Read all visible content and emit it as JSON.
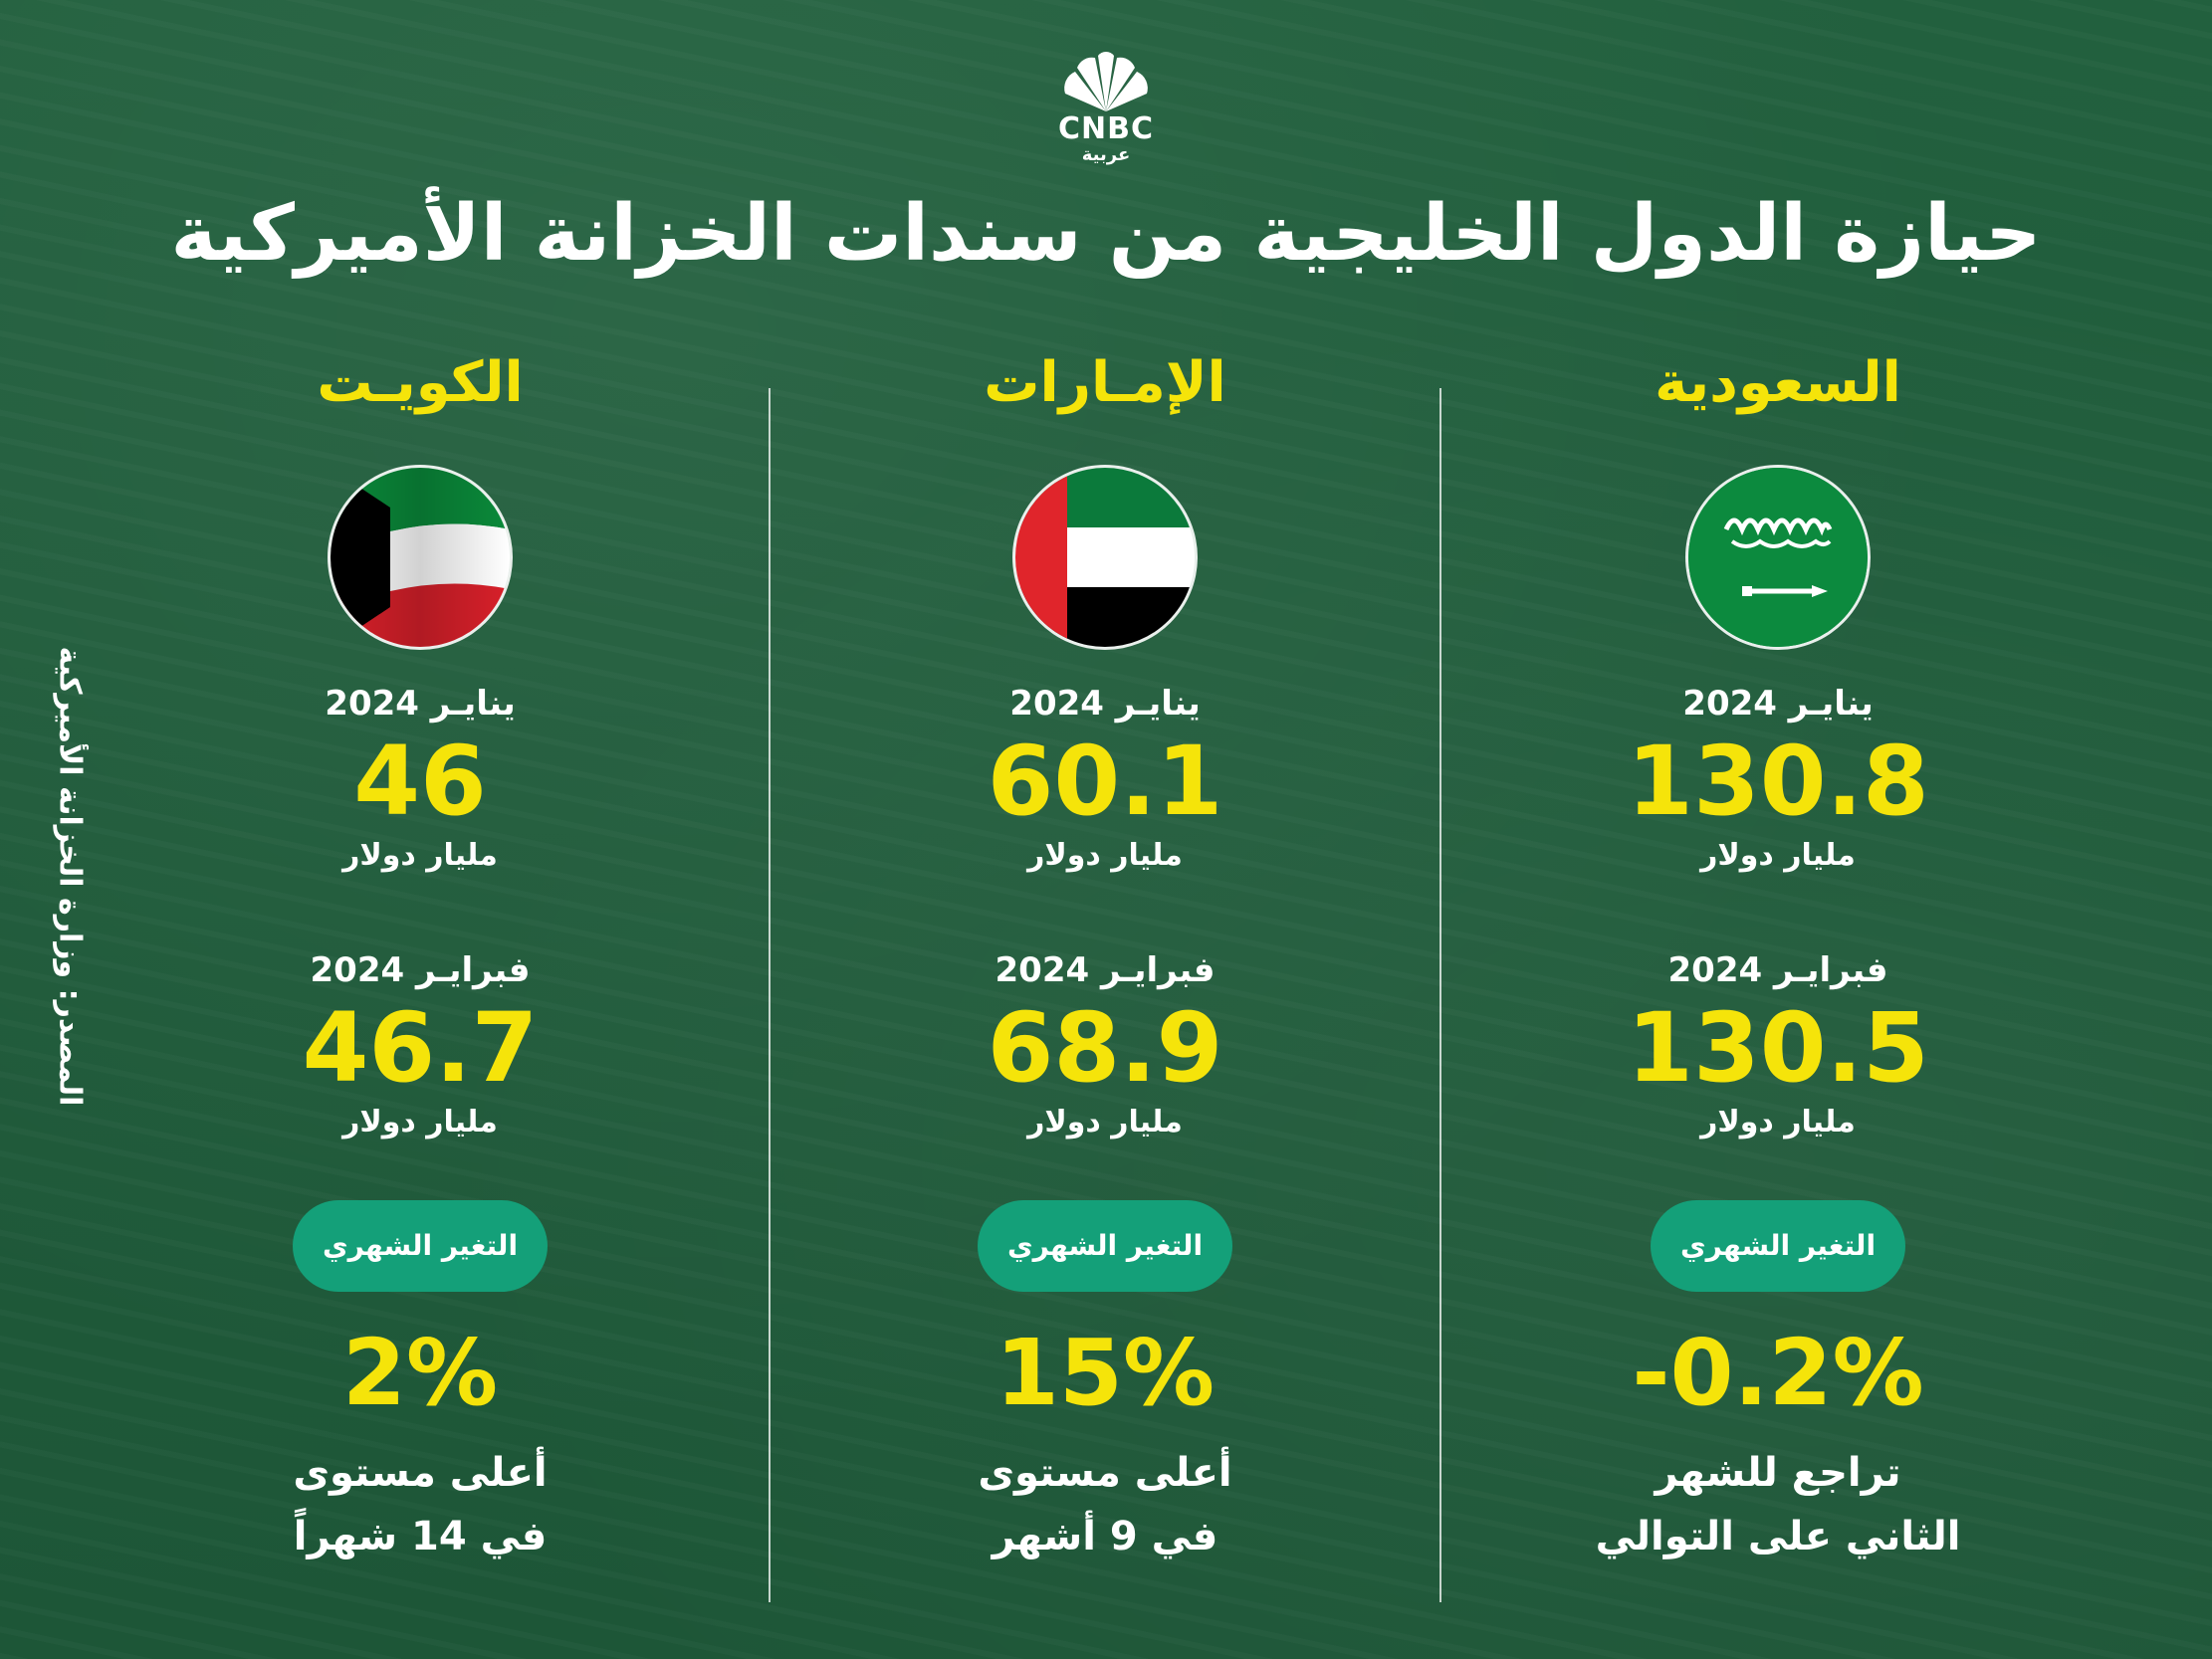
{
  "logo": {
    "brand": "CNBC",
    "sub": "عربية"
  },
  "title": "حيازة الدول الخليجية من سندات الخزانة الأميركية",
  "source": "المصدر: وزارة الخزانة الأميركية",
  "colors": {
    "accent": "#f5e40a",
    "pill": "#14a079",
    "background": "#1f5a3a"
  },
  "columns": [
    {
      "country": "السعودية",
      "flag": "saudi-flag",
      "jan_label": "ينايـر 2024",
      "jan_value": "130.8",
      "jan_unit": "مليار دولار",
      "feb_label": "فبرايـر 2024",
      "feb_value": "130.5",
      "feb_unit": "مليار دولار",
      "change_label": "التغير الشهري",
      "change_value": "-0.2%",
      "note_line1": "تراجع للشهر",
      "note_line2": "الثاني على التوالي"
    },
    {
      "country": "الإمـارات",
      "flag": "uae-flag",
      "jan_label": "ينايـر 2024",
      "jan_value": "60.1",
      "jan_unit": "مليار دولار",
      "feb_label": "فبرايـر 2024",
      "feb_value": "68.9",
      "feb_unit": "مليار دولار",
      "change_label": "التغير الشهري",
      "change_value": "15%",
      "note_line1": "أعلى مستوى",
      "note_line2": "في 9 أشهر"
    },
    {
      "country": "الكويـت",
      "flag": "kuwait-flag",
      "jan_label": "ينايـر 2024",
      "jan_value": "46",
      "jan_unit": "مليار دولار",
      "feb_label": "فبرايـر 2024",
      "feb_value": "46.7",
      "feb_unit": "مليار دولار",
      "change_label": "التغير الشهري",
      "change_value": "2%",
      "note_line1": "أعلى مستوى",
      "note_line2": "في 14 شهراً"
    }
  ]
}
